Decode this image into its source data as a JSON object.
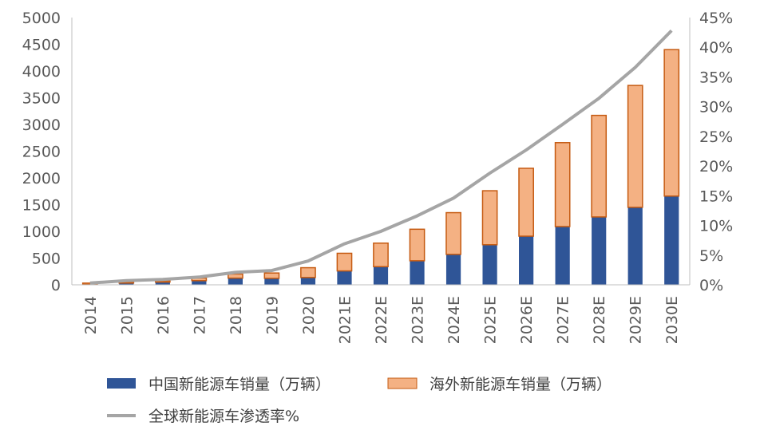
{
  "chart_data": {
    "type": "bar",
    "stacked": true,
    "categories": [
      "2014",
      "2015",
      "2016",
      "2017",
      "2018",
      "2019",
      "2020",
      "2021E",
      "2022E",
      "2023E",
      "2024E",
      "2025E",
      "2026E",
      "2027E",
      "2028E",
      "2029E",
      "2030E"
    ],
    "series": [
      {
        "name": "中国新能源车销量（万辆）",
        "color": "#2F5597",
        "values": [
          7,
          33,
          51,
          78,
          125,
          121,
          137,
          260,
          340,
          450,
          570,
          750,
          910,
          1090,
          1270,
          1450,
          1660
        ]
      },
      {
        "name": "海外新能源车销量（万辆）",
        "color": "#F4B183",
        "edge": "#C55A11",
        "values": [
          25,
          22,
          24,
          48,
          77,
          100,
          183,
          330,
          440,
          590,
          780,
          1010,
          1270,
          1570,
          1900,
          2280,
          2740
        ]
      }
    ],
    "line_series": {
      "name": "全球新能源车渗透率%",
      "color": "#A5A5A5",
      "values": [
        0.3,
        0.7,
        0.9,
        1.3,
        2.1,
        2.4,
        4.0,
        6.9,
        9.0,
        11.6,
        14.6,
        18.8,
        22.7,
        27.0,
        31.4,
        36.6,
        42.8
      ]
    },
    "ylim": [
      0,
      5000
    ],
    "y_ticks": [
      0,
      500,
      1000,
      1500,
      2000,
      2500,
      3000,
      3500,
      4000,
      4500,
      5000
    ],
    "y2lim": [
      0,
      45
    ],
    "y2_ticks": [
      "0%",
      "5%",
      "10%",
      "15%",
      "20%",
      "25%",
      "30%",
      "35%",
      "40%",
      "45%"
    ],
    "legend_position": "bottom"
  }
}
